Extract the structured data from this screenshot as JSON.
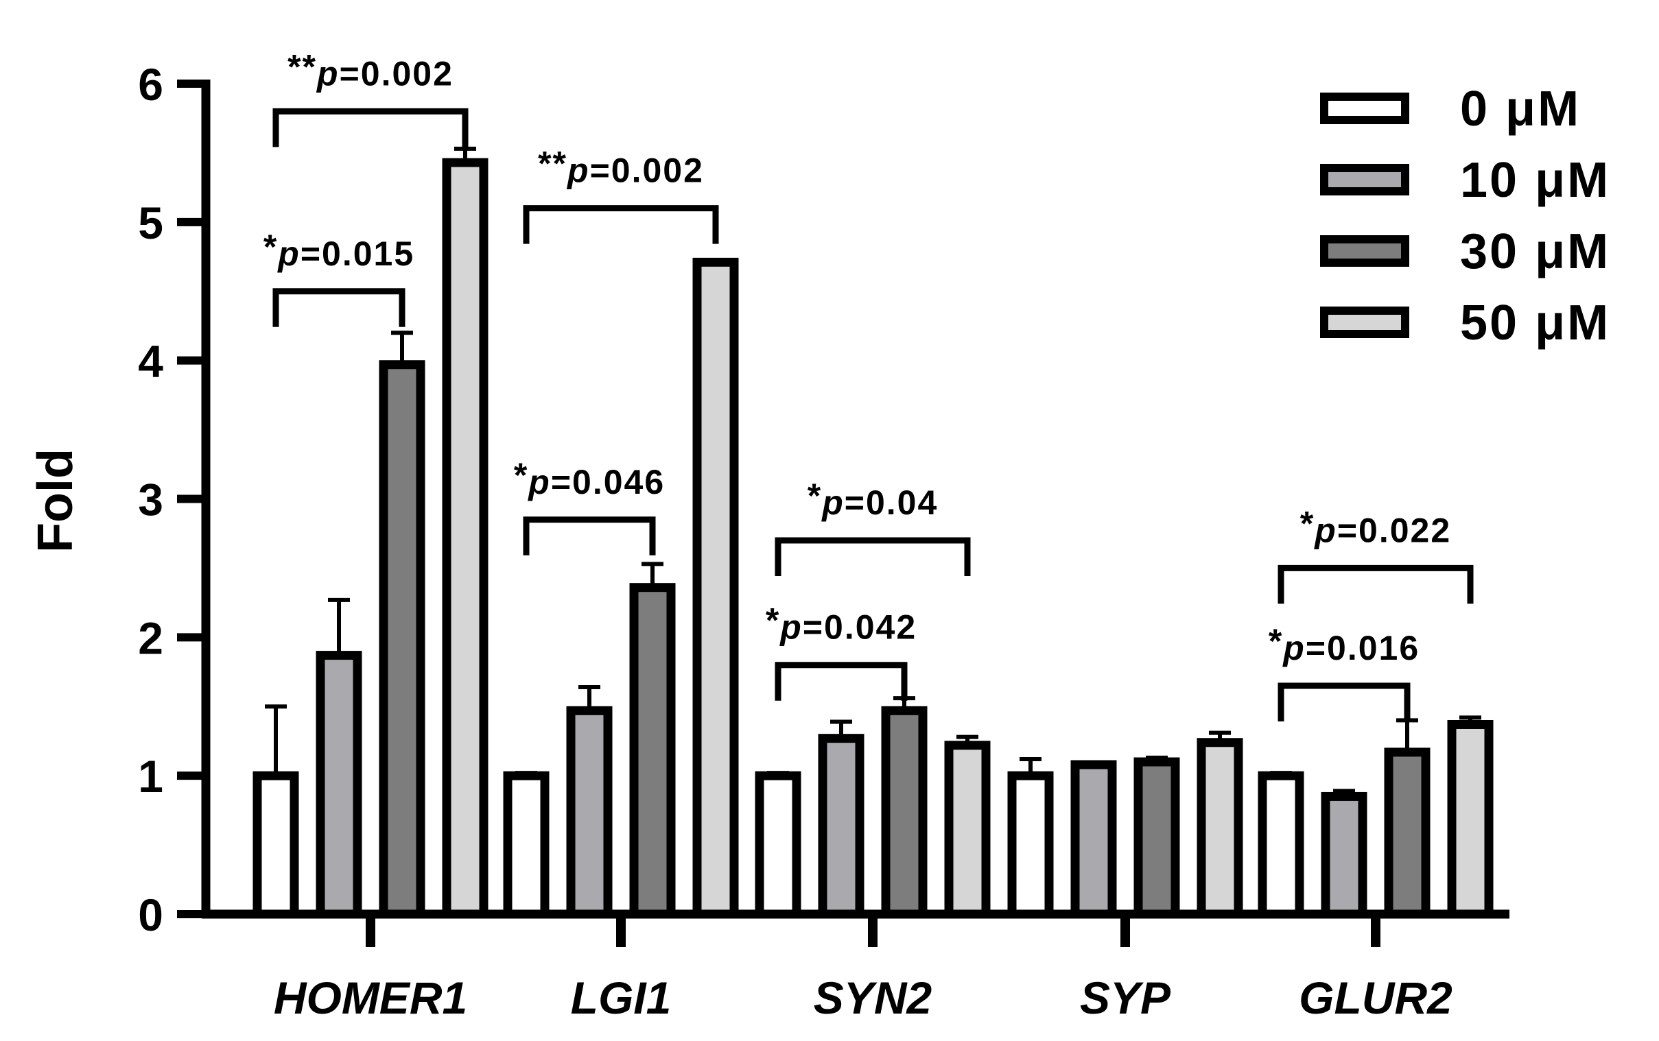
{
  "chart_data": {
    "type": "bar",
    "title": "",
    "xlabel": "",
    "ylabel": "Fold",
    "ylim": [
      0,
      6
    ],
    "yticks": [
      "0",
      "1",
      "2",
      "3",
      "4",
      "5",
      "6"
    ],
    "grid": false,
    "legend_position": "top-right",
    "categories": [
      "HOMER1",
      "LGI1",
      "SYN2",
      "SYP",
      "GLUR2"
    ],
    "series": [
      {
        "name": "0 μM",
        "color": "#ffffff",
        "values": [
          1.0,
          1.0,
          1.0,
          1.0,
          1.0
        ],
        "errors": [
          0.5,
          0.02,
          0.02,
          0.12,
          0.02
        ]
      },
      {
        "name": "10 μM",
        "color": "#a9a9ae",
        "values": [
          1.87,
          1.47,
          1.27,
          1.08,
          0.85
        ],
        "errors": [
          0.4,
          0.17,
          0.12,
          0.01,
          0.04
        ]
      },
      {
        "name": "30 μM",
        "color": "#7d7d7d",
        "values": [
          3.97,
          2.36,
          1.47,
          1.1,
          1.17
        ],
        "errors": [
          0.23,
          0.17,
          0.09,
          0.03,
          0.23
        ]
      },
      {
        "name": "50 μM",
        "color": "#d6d6d6",
        "values": [
          5.43,
          4.71,
          1.22,
          1.24,
          1.37
        ],
        "errors": [
          0.1,
          0.01,
          0.06,
          0.07,
          0.05
        ]
      }
    ],
    "annotations": [
      {
        "stars": "**",
        "p_prefix": "p",
        "p_value": "=0.002",
        "category": 0,
        "from_series": 0,
        "to_series": 3,
        "bracket_y": 5.8
      },
      {
        "stars": "*",
        "p_prefix": "p",
        "p_value": "=0.015",
        "category": 0,
        "from_series": 0,
        "to_series": 2,
        "bracket_y": 4.5
      },
      {
        "stars": "**",
        "p_prefix": "p",
        "p_value": "=0.002",
        "category": 1,
        "from_series": 0,
        "to_series": 3,
        "bracket_y": 5.1
      },
      {
        "stars": "*",
        "p_prefix": "p",
        "p_value": "=0.046",
        "category": 1,
        "from_series": 0,
        "to_series": 2,
        "bracket_y": 2.85
      },
      {
        "stars": "*",
        "p_prefix": "p",
        "p_value": "=0.04",
        "category": 2,
        "from_series": 0,
        "to_series": 3,
        "bracket_y": 2.7
      },
      {
        "stars": "*",
        "p_prefix": "p",
        "p_value": "=0.042",
        "category": 2,
        "from_series": 0,
        "to_series": 2,
        "bracket_y": 1.8
      },
      {
        "stars": "*",
        "p_prefix": "p",
        "p_value": "=0.022",
        "category": 4,
        "from_series": 0,
        "to_series": 3,
        "bracket_y": 2.5
      },
      {
        "stars": "*",
        "p_prefix": "p",
        "p_value": "=0.016",
        "category": 4,
        "from_series": 0,
        "to_series": 2,
        "bracket_y": 1.65
      }
    ]
  }
}
